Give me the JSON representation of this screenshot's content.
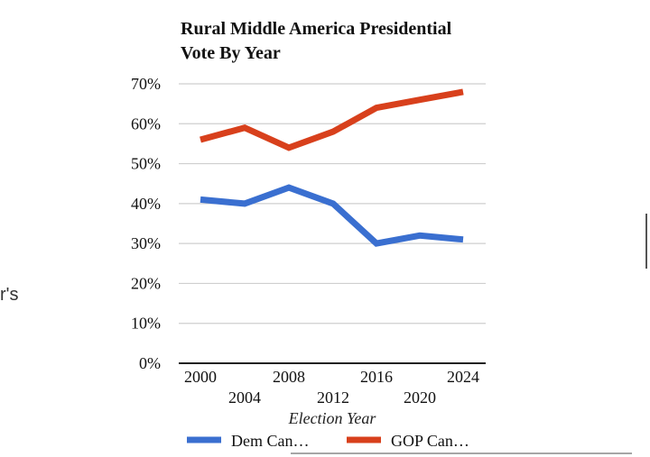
{
  "stray_text": "r's",
  "chart_data": {
    "type": "line",
    "title_lines": [
      "Rural Middle America Presidential",
      "Vote By Year"
    ],
    "xlabel": "Election Year",
    "ylabel": "",
    "x": [
      2000,
      2004,
      2008,
      2012,
      2016,
      2020,
      2024
    ],
    "x_tick_labels": [
      "2000",
      "2004",
      "2008",
      "2012",
      "2016",
      "2020",
      "2024"
    ],
    "y_ticks": [
      0,
      10,
      20,
      30,
      40,
      50,
      60,
      70
    ],
    "y_tick_labels": [
      "0%",
      "10%",
      "20%",
      "30%",
      "40%",
      "50%",
      "60%",
      "70%"
    ],
    "ylim": [
      0,
      70
    ],
    "grid": true,
    "legend_position": "bottom",
    "series": [
      {
        "name": "Dem Can…",
        "color": "#3a6fd0",
        "values": [
          41,
          40,
          44,
          40,
          30,
          32,
          31
        ]
      },
      {
        "name": "GOP Can…",
        "color": "#d8401c",
        "values": [
          56,
          59,
          54,
          58,
          64,
          66,
          68
        ]
      }
    ]
  }
}
